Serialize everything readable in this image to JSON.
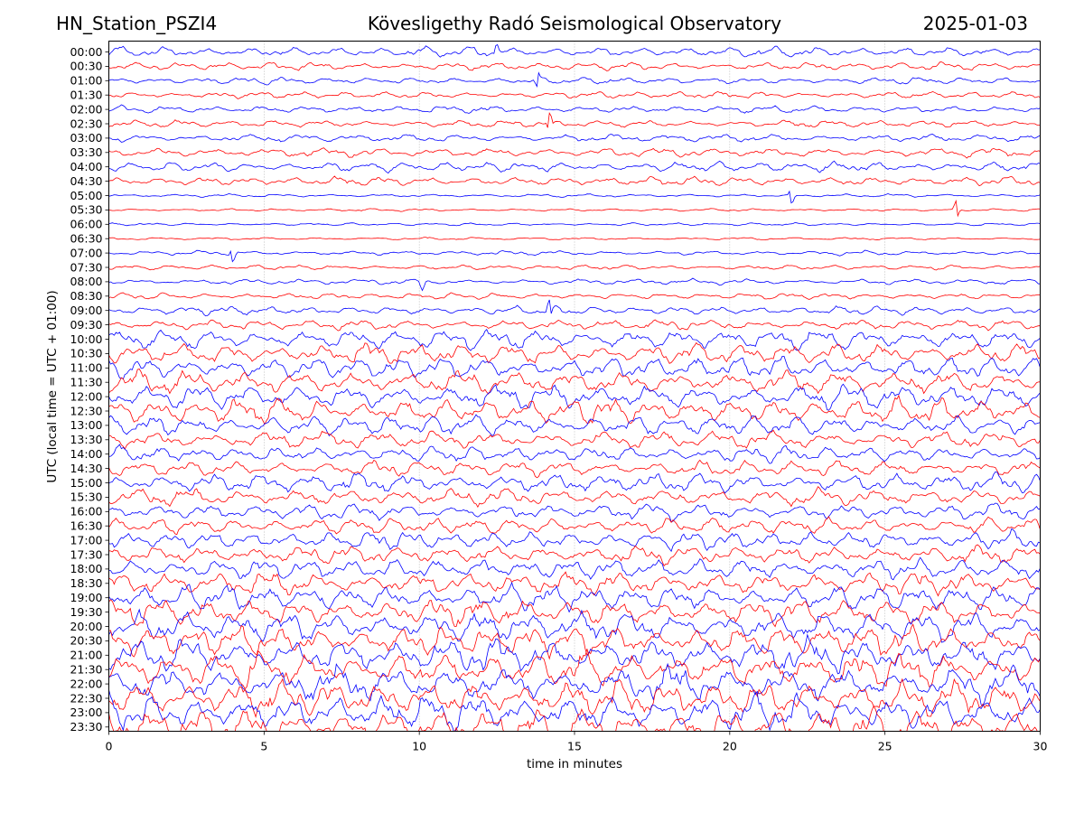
{
  "header": {
    "station": "HN_Station_PSZI4",
    "observatory": "Kövesligethy Radó Seismological Observatory",
    "date": "2025-01-03"
  },
  "chart_data": {
    "type": "line",
    "title": "Kövesligethy Radó Seismological Observatory",
    "xlabel": "time in minutes",
    "ylabel": "UTC (local time = UTC + 01:00)",
    "xlim": [
      0,
      30
    ],
    "x_ticks": [
      0,
      5,
      10,
      15,
      20,
      25,
      30
    ],
    "grid": "vertical dotted lines at 5-minute intervals",
    "legend": "none",
    "colors": {
      "even_rows": "#0000ff",
      "odd_rows": "#ff0000"
    },
    "row_labels": [
      "00:00",
      "00:30",
      "01:00",
      "01:30",
      "02:00",
      "02:30",
      "03:00",
      "03:30",
      "04:00",
      "04:30",
      "05:00",
      "05:30",
      "06:00",
      "06:30",
      "07:00",
      "07:30",
      "08:00",
      "08:30",
      "09:00",
      "09:30",
      "10:00",
      "10:30",
      "11:00",
      "11:30",
      "12:00",
      "12:30",
      "13:00",
      "13:30",
      "14:00",
      "14:30",
      "15:00",
      "15:30",
      "16:00",
      "16:30",
      "17:00",
      "17:30",
      "18:00",
      "18:30",
      "19:00",
      "19:30",
      "20:00",
      "20:30",
      "21:00",
      "21:30",
      "22:00",
      "22:30",
      "23:00",
      "23:30"
    ],
    "row_amplitude": [
      0.45,
      0.35,
      0.3,
      0.3,
      0.32,
      0.32,
      0.35,
      0.4,
      0.45,
      0.4,
      0.14,
      0.12,
      0.13,
      0.12,
      0.2,
      0.22,
      0.25,
      0.28,
      0.38,
      0.45,
      0.9,
      0.95,
      1.0,
      1.0,
      1.05,
      1.1,
      0.9,
      0.8,
      0.7,
      0.7,
      0.85,
      0.75,
      0.7,
      0.75,
      0.8,
      0.8,
      0.9,
      1.0,
      1.1,
      1.15,
      1.3,
      1.35,
      1.45,
      1.5,
      1.5,
      1.55,
      1.6,
      1.6
    ],
    "row_spikes": [
      [
        12.5
      ],
      [],
      [
        13.8
      ],
      [],
      [],
      [
        14.2
      ],
      [],
      [],
      [],
      [],
      [
        22
      ],
      [
        27.3
      ],
      [],
      [],
      [
        4
      ],
      [],
      [
        10.1
      ],
      [],
      [
        14.2
      ],
      [],
      [],
      [],
      [],
      [],
      [],
      [],
      [],
      [],
      [],
      [],
      [],
      [],
      [],
      [],
      [],
      [],
      [
        12.1
      ],
      [],
      [],
      [],
      [],
      [],
      [],
      [],
      [],
      [],
      [],
      []
    ]
  }
}
